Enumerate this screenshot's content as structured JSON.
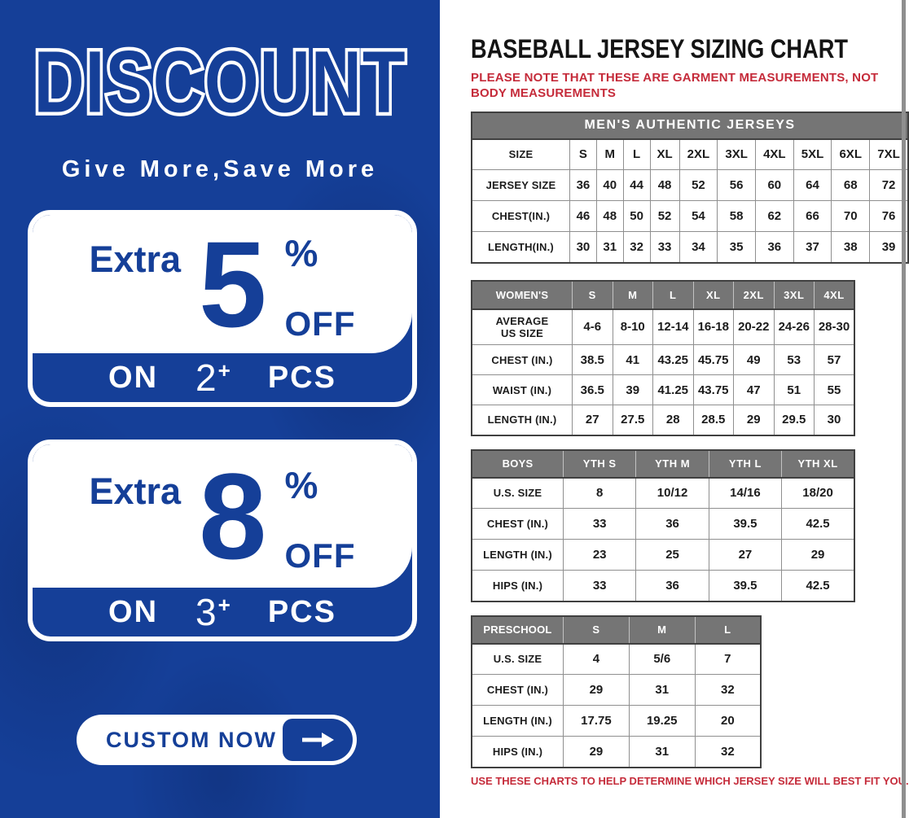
{
  "colors": {
    "blue": "#153f98",
    "red": "#c52b3a",
    "gray": "#757575"
  },
  "icons": {
    "cta_arrow": "arrow-right"
  },
  "left_panel": {
    "title": "DISCOUNT",
    "subtitle": "Give More,Save More",
    "offers": [
      {
        "extra": "Extra",
        "value": "5",
        "percent": "%",
        "off": "OFF",
        "on": "ON",
        "qty": "2",
        "plus": "+",
        "pcs": "PCS"
      },
      {
        "extra": "Extra",
        "value": "8",
        "percent": "%",
        "off": "OFF",
        "on": "ON",
        "qty": "3",
        "plus": "+",
        "pcs": "PCS"
      }
    ],
    "cta_label": "CUSTOM NOW"
  },
  "right_panel": {
    "title": "BASEBALL JERSEY SIZING CHART",
    "note": "PLEASE NOTE THAT THESE ARE GARMENT MEASUREMENTS, NOT BODY MEASUREMENTS",
    "footer": "USE THESE CHARTS TO HELP DETERMINE WHICH JERSEY SIZE WILL BEST FIT YOU.",
    "tables": [
      {
        "band": "MEN'S AUTHENTIC JERSEYS",
        "rows": [
          [
            "SIZE",
            "S",
            "M",
            "L",
            "XL",
            "2XL",
            "3XL",
            "4XL",
            "5XL",
            "6XL",
            "7XL"
          ],
          [
            "JERSEY SIZE",
            "36",
            "40",
            "44",
            "48",
            "52",
            "56",
            "60",
            "64",
            "68",
            "72"
          ],
          [
            "CHEST(IN.)",
            "46",
            "48",
            "50",
            "52",
            "54",
            "58",
            "62",
            "66",
            "70",
            "76"
          ],
          [
            "LENGTH(IN.)",
            "30",
            "31",
            "32",
            "33",
            "34",
            "35",
            "36",
            "37",
            "38",
            "39"
          ]
        ]
      },
      {
        "header": [
          "WOMEN'S",
          "S",
          "M",
          "L",
          "XL",
          "2XL",
          "3XL",
          "4XL"
        ],
        "rows": [
          [
            "AVERAGE\nUS SIZE",
            "4-6",
            "8-10",
            "12-14",
            "16-18",
            "20-22",
            "24-26",
            "28-30"
          ],
          [
            "CHEST (IN.)",
            "38.5",
            "41",
            "43.25",
            "45.75",
            "49",
            "53",
            "57"
          ],
          [
            "WAIST (IN.)",
            "36.5",
            "39",
            "41.25",
            "43.75",
            "47",
            "51",
            "55"
          ],
          [
            "LENGTH (IN.)",
            "27",
            "27.5",
            "28",
            "28.5",
            "29",
            "29.5",
            "30"
          ]
        ]
      },
      {
        "header": [
          "BOYS",
          "YTH S",
          "YTH M",
          "YTH L",
          "YTH XL"
        ],
        "rows": [
          [
            "U.S. SIZE",
            "8",
            "10/12",
            "14/16",
            "18/20"
          ],
          [
            "CHEST (IN.)",
            "33",
            "36",
            "39.5",
            "42.5"
          ],
          [
            "LENGTH (IN.)",
            "23",
            "25",
            "27",
            "29"
          ],
          [
            "HIPS (IN.)",
            "33",
            "36",
            "39.5",
            "42.5"
          ]
        ]
      },
      {
        "header": [
          "PRESCHOOL",
          "S",
          "M",
          "L"
        ],
        "rows": [
          [
            "U.S. SIZE",
            "4",
            "5/6",
            "7"
          ],
          [
            "CHEST (IN.)",
            "29",
            "31",
            "32"
          ],
          [
            "LENGTH (IN.)",
            "17.75",
            "19.25",
            "20"
          ],
          [
            "HIPS (IN.)",
            "29",
            "31",
            "32"
          ]
        ]
      }
    ]
  }
}
